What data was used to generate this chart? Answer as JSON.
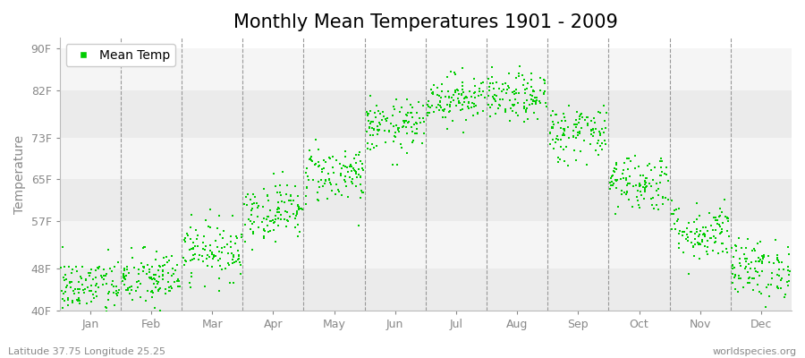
{
  "title": "Monthly Mean Temperatures 1901 - 2009",
  "ylabel": "Temperature",
  "y_ticks": [
    40,
    48,
    57,
    65,
    73,
    82,
    90
  ],
  "y_tick_labels": [
    "40F",
    "48F",
    "57F",
    "65F",
    "73F",
    "82F",
    "90F"
  ],
  "ylim": [
    40,
    92
  ],
  "months": [
    "Jan",
    "Feb",
    "Mar",
    "Apr",
    "May",
    "Jun",
    "Jul",
    "Aug",
    "Sep",
    "Oct",
    "Nov",
    "Dec"
  ],
  "month_means_f": [
    44.5,
    46.0,
    51.5,
    59.0,
    66.0,
    75.0,
    80.5,
    80.5,
    74.0,
    64.5,
    55.0,
    48.0
  ],
  "month_stds_f": [
    2.8,
    2.8,
    2.8,
    2.8,
    2.8,
    2.5,
    2.3,
    2.3,
    2.8,
    2.8,
    2.8,
    2.8
  ],
  "n_years": 109,
  "seed": 42,
  "dot_color": "#00cc00",
  "dot_size": 3,
  "marker": "s",
  "background_color": "#ffffff",
  "plot_bg_even": "#f5f5f5",
  "plot_bg_odd": "#ebebeb",
  "grid_color": "#999999",
  "legend_label": "Mean Temp",
  "footer_left": "Latitude 37.75 Longitude 25.25",
  "footer_right": "worldspecies.org",
  "title_fontsize": 15,
  "axis_label_fontsize": 10,
  "tick_fontsize": 9,
  "footer_fontsize": 8
}
